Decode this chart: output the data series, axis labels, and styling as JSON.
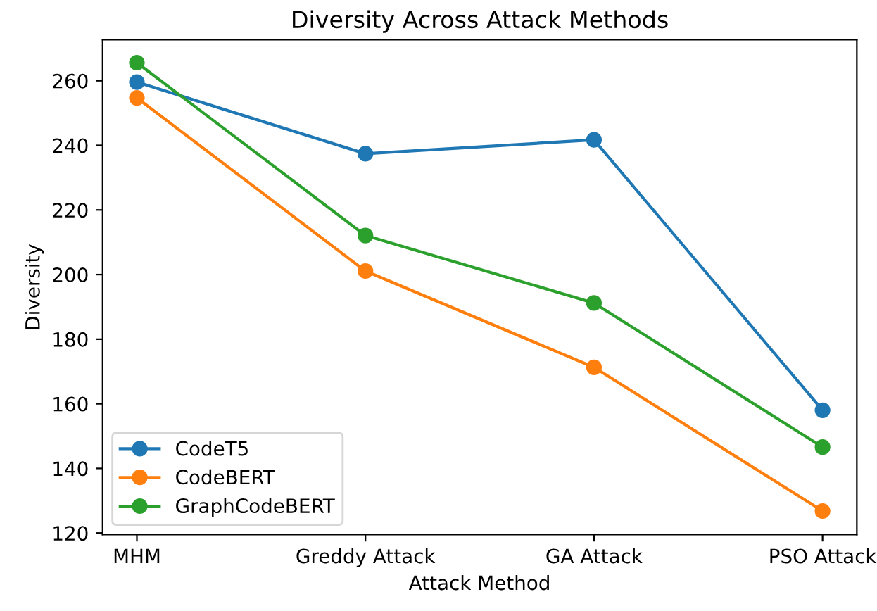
{
  "chart_data": {
    "type": "line",
    "title": "Diversity Across Attack Methods",
    "xlabel": "Attack Method",
    "ylabel": "Diversity",
    "categories": [
      "MHM",
      "Greddy Attack",
      "GA Attack",
      "PSO Attack"
    ],
    "series": [
      {
        "name": "CodeT5",
        "color": "#1f77b4",
        "values": [
          259.6,
          237.4,
          241.7,
          158
        ]
      },
      {
        "name": "CodeBERT",
        "color": "#ff7f0e",
        "values": [
          254.7,
          201.1,
          171.3,
          126.8
        ]
      },
      {
        "name": "GraphCodeBERT",
        "color": "#2ca02c",
        "values": [
          265.6,
          212.1,
          191.2,
          146.6
        ]
      }
    ],
    "ylim": [
      119.5,
      272.7
    ],
    "yticks": [
      120,
      140,
      160,
      180,
      200,
      220,
      240,
      260
    ],
    "marker": "circle",
    "line_style": "solid",
    "legend": "bottom left",
    "grid": false
  }
}
